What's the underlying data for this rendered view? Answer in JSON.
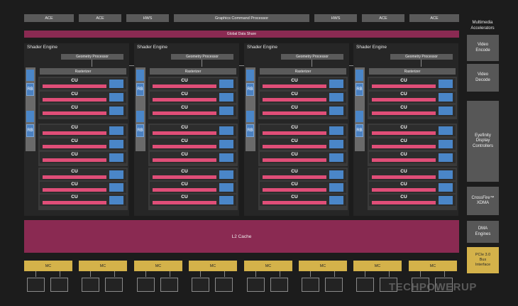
{
  "top_row": {
    "ace1": "ACE",
    "ace2": "ACE",
    "hws1": "HWS",
    "gcp": "Graphics Command Processor",
    "hws2": "HWS",
    "ace3": "ACE",
    "ace4": "ACE"
  },
  "global_data_share": "Global Data Share",
  "shader_engines": [
    {
      "title": "Shader Engine",
      "geometry": "Geometry Processor",
      "rasterizer": "Rasterizer"
    },
    {
      "title": "Shader Engine",
      "geometry": "Geometry Processor",
      "rasterizer": "Rasterizer"
    },
    {
      "title": "Shader Engine",
      "geometry": "Geometry Processor",
      "rasterizer": "Rasterizer"
    },
    {
      "title": "Shader Engine",
      "geometry": "Geometry Processor",
      "rasterizer": "Rasterizer"
    }
  ],
  "cu_label": "CU",
  "rb_label": "RB",
  "l2_cache": "L2 Cache",
  "mc_label": "MC",
  "right_panel": {
    "multimedia": "Multimedia\nAccelerators",
    "video_encode": "Video\nEncode",
    "video_decode": "Video\nDecode",
    "eyefinity": "Eyefinity\nDisplay\nControllers",
    "crossfire": "CrossFire™\nXDMA",
    "dma": "DMA\nEngines",
    "pcie": "PCIe 3.0\nBus\nInterface"
  },
  "watermark": "TECHPOWERUP",
  "colors": {
    "background": "#1c1c1c",
    "magenta": "#8a2a52",
    "cu_pink": "#e04e78",
    "cu_blue": "#4a86c8",
    "gold": "#d4b24a",
    "gray_box": "#5a5a5a"
  }
}
